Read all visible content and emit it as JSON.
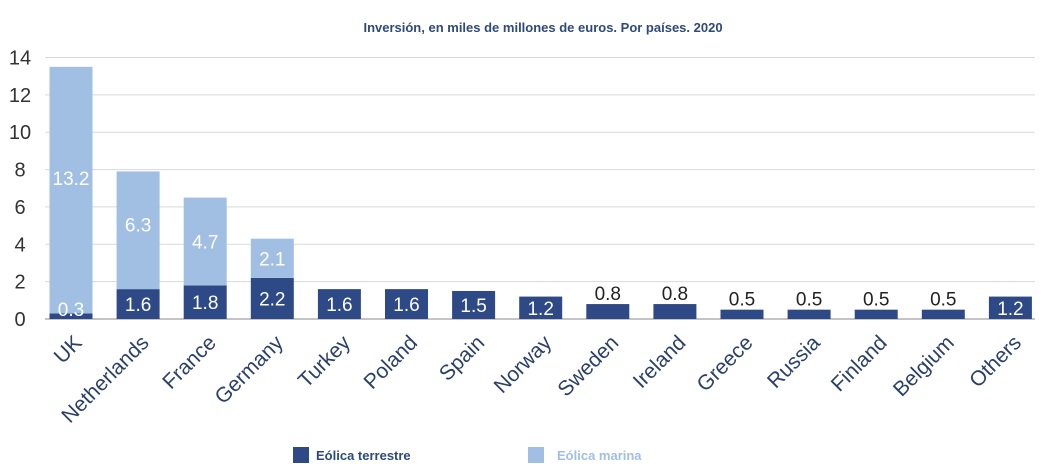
{
  "chart_data": {
    "type": "bar",
    "stacked": true,
    "title": "Inversión, en miles de millones de euros. Por países. 2020",
    "xlabel": "",
    "ylabel": "",
    "ylim": [
      0,
      14
    ],
    "yticks": [
      "0",
      "2",
      "4",
      "6",
      "8",
      "10",
      "12",
      "14"
    ],
    "grid": true,
    "legend_position": "bottom",
    "categories": [
      "UK",
      "Netherlands",
      "France",
      "Germany",
      "Turkey",
      "Poland",
      "Spain",
      "Norway",
      "Sweden",
      "Ireland",
      "Greece",
      "Russia",
      "Finland",
      "Belgium",
      "Others"
    ],
    "series": [
      {
        "name": "Eólica terrestre",
        "color": "#2e4a86",
        "values": [
          0.3,
          1.6,
          1.8,
          2.2,
          1.6,
          1.6,
          1.5,
          1.2,
          0.8,
          0.8,
          0.5,
          0.5,
          0.5,
          0.5,
          1.2
        ],
        "labels": [
          "0.3",
          "1.6",
          "1.8",
          "2.2",
          "1.6",
          "1.6",
          "1.5",
          "1.2",
          "0.8",
          "0.8",
          "0.5",
          "0.5",
          "0.5",
          "0.5",
          "1.2"
        ]
      },
      {
        "name": "Eólica marina",
        "color": "#a0bfe3",
        "values": [
          13.2,
          6.3,
          4.7,
          2.1,
          0,
          0,
          0,
          0,
          0,
          0,
          0,
          0,
          0,
          0,
          0
        ],
        "labels": [
          "13.2",
          "6.3",
          "4.7",
          "2.1",
          "",
          "",
          "",
          "",
          "",
          "",
          "",
          "",
          "",
          "",
          ""
        ]
      }
    ]
  }
}
